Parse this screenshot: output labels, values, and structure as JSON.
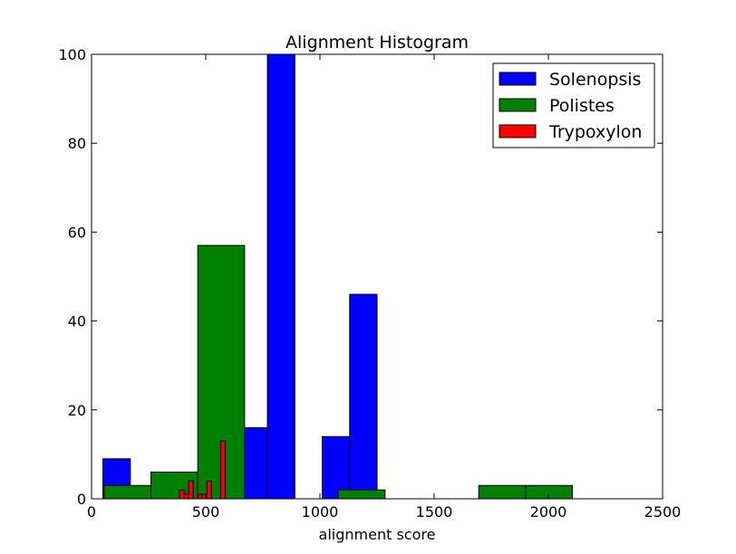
{
  "chart_data": {
    "type": "bar",
    "title": "Alignment Histogram",
    "xlabel": "alignment score",
    "ylabel": "",
    "xlim": [
      0,
      2500
    ],
    "ylim": [
      0,
      100
    ],
    "xticks": [
      0,
      500,
      1000,
      1500,
      2000,
      2500
    ],
    "yticks": [
      0,
      20,
      40,
      60,
      80,
      100
    ],
    "grid": false,
    "legend_position": "top-right",
    "series": [
      {
        "name": "Solenopsis",
        "color": "#0000ff",
        "bins": [
          {
            "x0": 50,
            "x1": 170,
            "count": 9
          },
          {
            "x0": 170,
            "x1": 290,
            "count": 0
          },
          {
            "x0": 290,
            "x1": 410,
            "count": 0
          },
          {
            "x0": 410,
            "x1": 530,
            "count": 0
          },
          {
            "x0": 530,
            "x1": 650,
            "count": 0
          },
          {
            "x0": 650,
            "x1": 770,
            "count": 16
          },
          {
            "x0": 770,
            "x1": 890,
            "count": 100
          },
          {
            "x0": 890,
            "x1": 1010,
            "count": 0
          },
          {
            "x0": 1010,
            "x1": 1130,
            "count": 14
          },
          {
            "x0": 1130,
            "x1": 1250,
            "count": 46
          }
        ]
      },
      {
        "name": "Polistes",
        "color": "#008000",
        "bins": [
          {
            "x0": 55,
            "x1": 260,
            "count": 3
          },
          {
            "x0": 260,
            "x1": 465,
            "count": 6
          },
          {
            "x0": 465,
            "x1": 670,
            "count": 57
          },
          {
            "x0": 670,
            "x1": 875,
            "count": 0
          },
          {
            "x0": 875,
            "x1": 1080,
            "count": 0
          },
          {
            "x0": 1080,
            "x1": 1285,
            "count": 2
          },
          {
            "x0": 1285,
            "x1": 1490,
            "count": 0
          },
          {
            "x0": 1490,
            "x1": 1695,
            "count": 0
          },
          {
            "x0": 1695,
            "x1": 1900,
            "count": 3
          },
          {
            "x0": 1900,
            "x1": 2105,
            "count": 3
          }
        ]
      },
      {
        "name": "Trypoxylon",
        "color": "#ff0000",
        "bins": [
          {
            "x0": 385,
            "x1": 405,
            "count": 2
          },
          {
            "x0": 405,
            "x1": 425,
            "count": 1
          },
          {
            "x0": 425,
            "x1": 445,
            "count": 4
          },
          {
            "x0": 445,
            "x1": 465,
            "count": 0
          },
          {
            "x0": 465,
            "x1": 485,
            "count": 1
          },
          {
            "x0": 485,
            "x1": 505,
            "count": 1
          },
          {
            "x0": 505,
            "x1": 525,
            "count": 4
          },
          {
            "x0": 525,
            "x1": 545,
            "count": 0
          },
          {
            "x0": 545,
            "x1": 565,
            "count": 0
          },
          {
            "x0": 565,
            "x1": 585,
            "count": 13
          }
        ]
      }
    ]
  }
}
